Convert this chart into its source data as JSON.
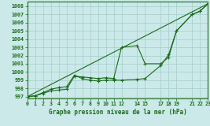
{
  "title": "Graphe pression niveau de la mer (hPa)",
  "bg_color": "#cce9e9",
  "grid_color": "#aad0d0",
  "line_color": "#1a6b1a",
  "marker_color": "#1a6b1a",
  "xlim": [
    0,
    23
  ],
  "ylim": [
    996.8,
    1008.6
  ],
  "xticks": [
    0,
    1,
    2,
    3,
    4,
    5,
    6,
    7,
    8,
    9,
    10,
    11,
    12,
    14,
    15,
    17,
    18,
    19,
    21,
    22,
    23
  ],
  "yticks": [
    997,
    998,
    999,
    1000,
    1001,
    1002,
    1003,
    1004,
    1005,
    1006,
    1007,
    1008
  ],
  "series1_x": [
    0,
    1,
    2,
    3,
    4,
    5,
    6,
    7,
    8,
    9,
    10,
    11,
    12,
    14,
    15,
    17,
    18,
    19,
    21,
    22,
    23
  ],
  "series1_y": [
    997.0,
    997.1,
    997.5,
    997.9,
    998.1,
    998.2,
    999.6,
    999.2,
    999.0,
    998.9,
    999.0,
    999.0,
    999.0,
    999.1,
    999.2,
    1000.8,
    1002.1,
    1005.0,
    1007.0,
    1007.4,
    1008.3
  ],
  "series2_x": [
    0,
    1,
    2,
    3,
    4,
    5,
    6,
    7,
    8,
    9,
    10,
    11,
    12,
    14,
    15,
    17,
    18,
    19,
    21,
    22,
    23
  ],
  "series2_y": [
    997.0,
    997.1,
    997.4,
    997.7,
    997.8,
    997.9,
    999.5,
    999.4,
    999.3,
    999.2,
    999.3,
    999.2,
    1003.0,
    1003.2,
    1001.0,
    1001.0,
    1001.8,
    1005.0,
    1007.0,
    1007.4,
    1008.3
  ],
  "series3_x": [
    0,
    23
  ],
  "series3_y": [
    997.0,
    1008.3
  ]
}
